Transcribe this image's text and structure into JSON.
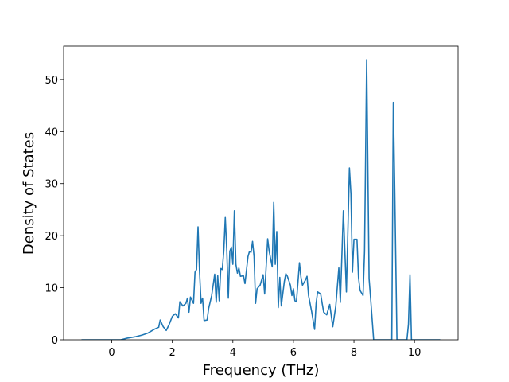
{
  "chart_data": {
    "type": "line",
    "xlabel": "Frequency (THz)",
    "ylabel": "Density of States",
    "color": "#1f77b4",
    "x": [
      -1,
      0.3,
      0.5,
      0.8,
      1.0,
      1.2,
      1.4,
      1.55,
      1.6,
      1.7,
      1.8,
      1.9,
      2.0,
      2.1,
      2.2,
      2.25,
      2.35,
      2.45,
      2.5,
      2.55,
      2.6,
      2.7,
      2.75,
      2.8,
      2.85,
      2.9,
      2.95,
      3.0,
      3.05,
      3.15,
      3.2,
      3.3,
      3.4,
      3.45,
      3.5,
      3.55,
      3.6,
      3.65,
      3.7,
      3.75,
      3.8,
      3.85,
      3.9,
      3.95,
      4.0,
      4.05,
      4.1,
      4.15,
      4.2,
      4.25,
      4.35,
      4.4,
      4.5,
      4.55,
      4.6,
      4.65,
      4.7,
      4.75,
      4.8,
      4.9,
      5.0,
      5.05,
      5.15,
      5.2,
      5.3,
      5.35,
      5.4,
      5.45,
      5.5,
      5.55,
      5.6,
      5.7,
      5.75,
      5.8,
      5.9,
      5.95,
      6.0,
      6.05,
      6.1,
      6.2,
      6.25,
      6.3,
      6.4,
      6.45,
      6.5,
      6.6,
      6.7,
      6.75,
      6.8,
      6.9,
      6.95,
      7.0,
      7.1,
      7.2,
      7.3,
      7.4,
      7.5,
      7.55,
      7.65,
      7.7,
      7.75,
      7.85,
      7.9,
      7.95,
      8.0,
      8.1,
      8.15,
      8.2,
      8.3,
      8.35,
      8.42,
      8.5,
      8.55,
      8.65,
      9.25,
      9.3,
      9.35,
      9.42,
      9.75,
      9.8,
      9.85,
      9.9,
      10.85
    ],
    "values": [
      0,
      0,
      0.3,
      0.6,
      0.9,
      1.3,
      2.0,
      2.4,
      3.8,
      2.5,
      1.8,
      3,
      4.5,
      5,
      4.2,
      7.3,
      6.5,
      7,
      8,
      5.3,
      8.2,
      7,
      13,
      13.5,
      21.7,
      13,
      7,
      8,
      3.7,
      3.8,
      6,
      8.5,
      12.6,
      7.2,
      12.3,
      7.5,
      13.7,
      13.5,
      17,
      23.5,
      17,
      8,
      17,
      17.8,
      14.5,
      24.8,
      14.5,
      12.8,
      13.8,
      12.2,
      12.3,
      10.8,
      16,
      17,
      16.8,
      18.9,
      16,
      7,
      9.8,
      10.5,
      12.5,
      8.8,
      19.4,
      17,
      14,
      26.4,
      14.5,
      20.8,
      6.2,
      12,
      6.5,
      11.2,
      12.7,
      12.2,
      10.5,
      8.5,
      9.8,
      7.5,
      7.3,
      14.8,
      12,
      10.5,
      11.5,
      12.2,
      8.5,
      5.5,
      2,
      7,
      9.2,
      8.8,
      7,
      5.3,
      4.8,
      6.8,
      2.5,
      6.5,
      13.8,
      7.2,
      24.8,
      17,
      9.2,
      33,
      28,
      13,
      19.3,
      19.3,
      12,
      9.5,
      8.5,
      17,
      53.8,
      11.7,
      8,
      0,
      0,
      45.6,
      28,
      0,
      0,
      3,
      12.5,
      0,
      0
    ],
    "xlim": [
      -1.59,
      11.44
    ],
    "ylim": [
      0,
      56.4
    ],
    "xticks": [
      0,
      2,
      4,
      6,
      8,
      10
    ],
    "yticks": [
      0,
      10,
      20,
      30,
      40,
      50
    ]
  }
}
